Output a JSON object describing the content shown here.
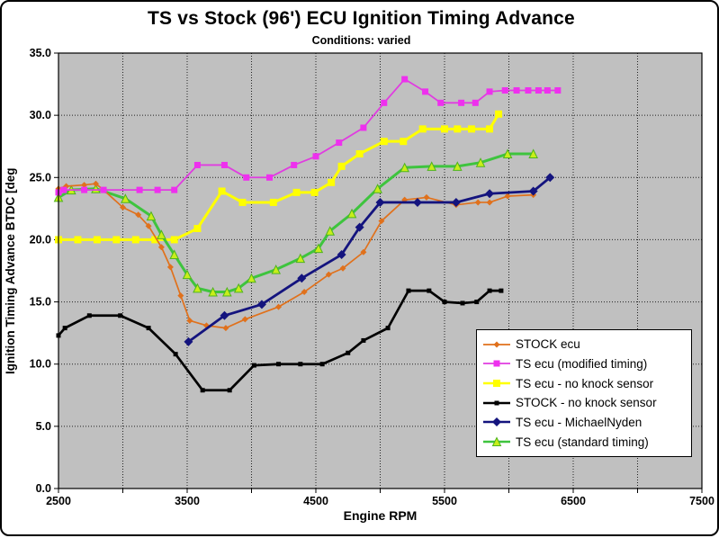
{
  "chart_data": {
    "type": "line",
    "title": "TS vs Stock (96') ECU Ignition Timing Advance",
    "subtitle": "Conditions: varied",
    "xlabel": "Engine RPM",
    "ylabel": "Ignition Timing Advance BTDC [deg",
    "xlim": [
      2500,
      7500
    ],
    "ylim": [
      0,
      35
    ],
    "x_gridline_step": 500,
    "y_gridline_step": 5,
    "xtick_values": [
      2500,
      3500,
      4500,
      5500,
      6500,
      7500
    ],
    "xtick_labels": [
      "2500",
      "3500",
      "4500",
      "5500",
      "6500",
      "7500"
    ],
    "ytick_values": [
      0,
      5,
      10,
      15,
      20,
      25,
      30,
      35
    ],
    "ytick_labels": [
      "0.0",
      "5.0",
      "10.0",
      "15.0",
      "20.0",
      "25.0",
      "30.0",
      "35.0"
    ],
    "plot_bg": "#c0c0c0",
    "grid_style": "dotted",
    "legend_position": "right-middle",
    "series": [
      {
        "name": "STOCK ecu",
        "color": "#e0711c",
        "marker": "diamond",
        "marker_fill": "#e0711c",
        "marker_size": 7,
        "line_width": 1.7,
        "points": [
          [
            2500,
            24.1
          ],
          [
            2560,
            24.3
          ],
          [
            2700,
            24.4
          ],
          [
            2790,
            24.5
          ],
          [
            2850,
            24.0
          ],
          [
            3000,
            22.6
          ],
          [
            3120,
            22.0
          ],
          [
            3200,
            21.1
          ],
          [
            3300,
            19.4
          ],
          [
            3370,
            17.8
          ],
          [
            3450,
            15.5
          ],
          [
            3520,
            13.5
          ],
          [
            3650,
            13.1
          ],
          [
            3800,
            12.9
          ],
          [
            3950,
            13.6
          ],
          [
            4210,
            14.6
          ],
          [
            4410,
            15.8
          ],
          [
            4600,
            17.2
          ],
          [
            4710,
            17.7
          ],
          [
            4870,
            19.0
          ],
          [
            5010,
            21.5
          ],
          [
            5190,
            23.2
          ],
          [
            5360,
            23.4
          ],
          [
            5590,
            22.8
          ],
          [
            5760,
            23.0
          ],
          [
            5850,
            23.0
          ],
          [
            5990,
            23.5
          ],
          [
            6190,
            23.6
          ]
        ]
      },
      {
        "name": "TS ecu (modified timing)",
        "color": "#e03ce0",
        "marker": "square",
        "marker_fill": "#ee30ee",
        "marker_size": 7,
        "line_width": 1.8,
        "points": [
          [
            2500,
            23.8
          ],
          [
            2540,
            24.0
          ],
          [
            2700,
            24.0
          ],
          [
            2850,
            24.0
          ],
          [
            3130,
            24.0
          ],
          [
            3270,
            24.0
          ],
          [
            3400,
            24.0
          ],
          [
            3580,
            26.0
          ],
          [
            3790,
            26.0
          ],
          [
            3960,
            25.0
          ],
          [
            4140,
            25.0
          ],
          [
            4330,
            26.0
          ],
          [
            4500,
            26.7
          ],
          [
            4680,
            27.8
          ],
          [
            4870,
            29.0
          ],
          [
            5030,
            31.0
          ],
          [
            5190,
            32.9
          ],
          [
            5350,
            31.9
          ],
          [
            5470,
            31.0
          ],
          [
            5630,
            31.0
          ],
          [
            5740,
            31.0
          ],
          [
            5850,
            31.9
          ],
          [
            5970,
            32.0
          ],
          [
            6060,
            32.0
          ],
          [
            6150,
            32.0
          ],
          [
            6230,
            32.0
          ],
          [
            6300,
            32.0
          ],
          [
            6380,
            32.0
          ]
        ]
      },
      {
        "name": "TS ecu - no knock sensor",
        "color": "#ffff00",
        "marker": "square",
        "marker_fill": "#ffff00",
        "marker_size": 8,
        "line_width": 3,
        "points": [
          [
            2500,
            20.0
          ],
          [
            2650,
            20.0
          ],
          [
            2800,
            20.0
          ],
          [
            2950,
            20.0
          ],
          [
            3100,
            20.0
          ],
          [
            3250,
            20.0
          ],
          [
            3400,
            20.0
          ],
          [
            3580,
            20.9
          ],
          [
            3770,
            23.9
          ],
          [
            3930,
            23.0
          ],
          [
            4170,
            23.0
          ],
          [
            4350,
            23.8
          ],
          [
            4490,
            23.8
          ],
          [
            4620,
            24.6
          ],
          [
            4700,
            25.9
          ],
          [
            4840,
            26.9
          ],
          [
            5030,
            27.9
          ],
          [
            5180,
            27.9
          ],
          [
            5330,
            28.9
          ],
          [
            5500,
            28.9
          ],
          [
            5600,
            28.9
          ],
          [
            5710,
            28.9
          ],
          [
            5850,
            28.9
          ],
          [
            5920,
            30.1
          ]
        ]
      },
      {
        "name": "STOCK - no knock sensor",
        "color": "#000000",
        "marker": "square",
        "marker_fill": "#000000",
        "marker_size": 5,
        "line_width": 2.7,
        "points": [
          [
            2500,
            12.3
          ],
          [
            2550,
            12.9
          ],
          [
            2740,
            13.9
          ],
          [
            2980,
            13.9
          ],
          [
            3200,
            12.9
          ],
          [
            3410,
            10.8
          ],
          [
            3620,
            7.9
          ],
          [
            3830,
            7.9
          ],
          [
            4020,
            9.9
          ],
          [
            4210,
            10.0
          ],
          [
            4380,
            10.0
          ],
          [
            4550,
            10.0
          ],
          [
            4750,
            10.9
          ],
          [
            4870,
            11.9
          ],
          [
            5060,
            12.9
          ],
          [
            5220,
            15.9
          ],
          [
            5380,
            15.9
          ],
          [
            5500,
            15.0
          ],
          [
            5640,
            14.9
          ],
          [
            5750,
            15.0
          ],
          [
            5850,
            15.9
          ],
          [
            5940,
            15.9
          ]
        ]
      },
      {
        "name": "TS ecu - MichaelNyden",
        "color": "#14147e",
        "marker": "diamond",
        "marker_fill": "#14147e",
        "marker_size": 10,
        "line_width": 2.8,
        "points": [
          [
            3510,
            11.8
          ],
          [
            3790,
            13.9
          ],
          [
            4080,
            14.8
          ],
          [
            4390,
            16.9
          ],
          [
            4700,
            18.8
          ],
          [
            4840,
            21.0
          ],
          [
            5000,
            23.0
          ],
          [
            5290,
            23.0
          ],
          [
            5590,
            23.0
          ],
          [
            5850,
            23.7
          ],
          [
            6190,
            23.9
          ],
          [
            6320,
            25.0
          ]
        ]
      },
      {
        "name": "TS ecu (standard timing)",
        "color": "#3ec43e",
        "marker": "triangle",
        "marker_fill": "#c8ee1a",
        "marker_stroke": "#4eb41e",
        "marker_size": 9,
        "line_width": 3,
        "points": [
          [
            2500,
            23.4
          ],
          [
            2600,
            24.0
          ],
          [
            2790,
            24.1
          ],
          [
            3020,
            23.3
          ],
          [
            3220,
            21.9
          ],
          [
            3300,
            20.4
          ],
          [
            3400,
            18.8
          ],
          [
            3500,
            17.2
          ],
          [
            3580,
            16.1
          ],
          [
            3700,
            15.8
          ],
          [
            3810,
            15.8
          ],
          [
            3900,
            16.1
          ],
          [
            4000,
            16.9
          ],
          [
            4190,
            17.6
          ],
          [
            4380,
            18.5
          ],
          [
            4520,
            19.3
          ],
          [
            4610,
            20.7
          ],
          [
            4780,
            22.1
          ],
          [
            4980,
            24.1
          ],
          [
            5190,
            25.8
          ],
          [
            5400,
            25.9
          ],
          [
            5600,
            25.9
          ],
          [
            5780,
            26.2
          ],
          [
            5990,
            26.9
          ],
          [
            6190,
            26.9
          ]
        ]
      }
    ]
  }
}
